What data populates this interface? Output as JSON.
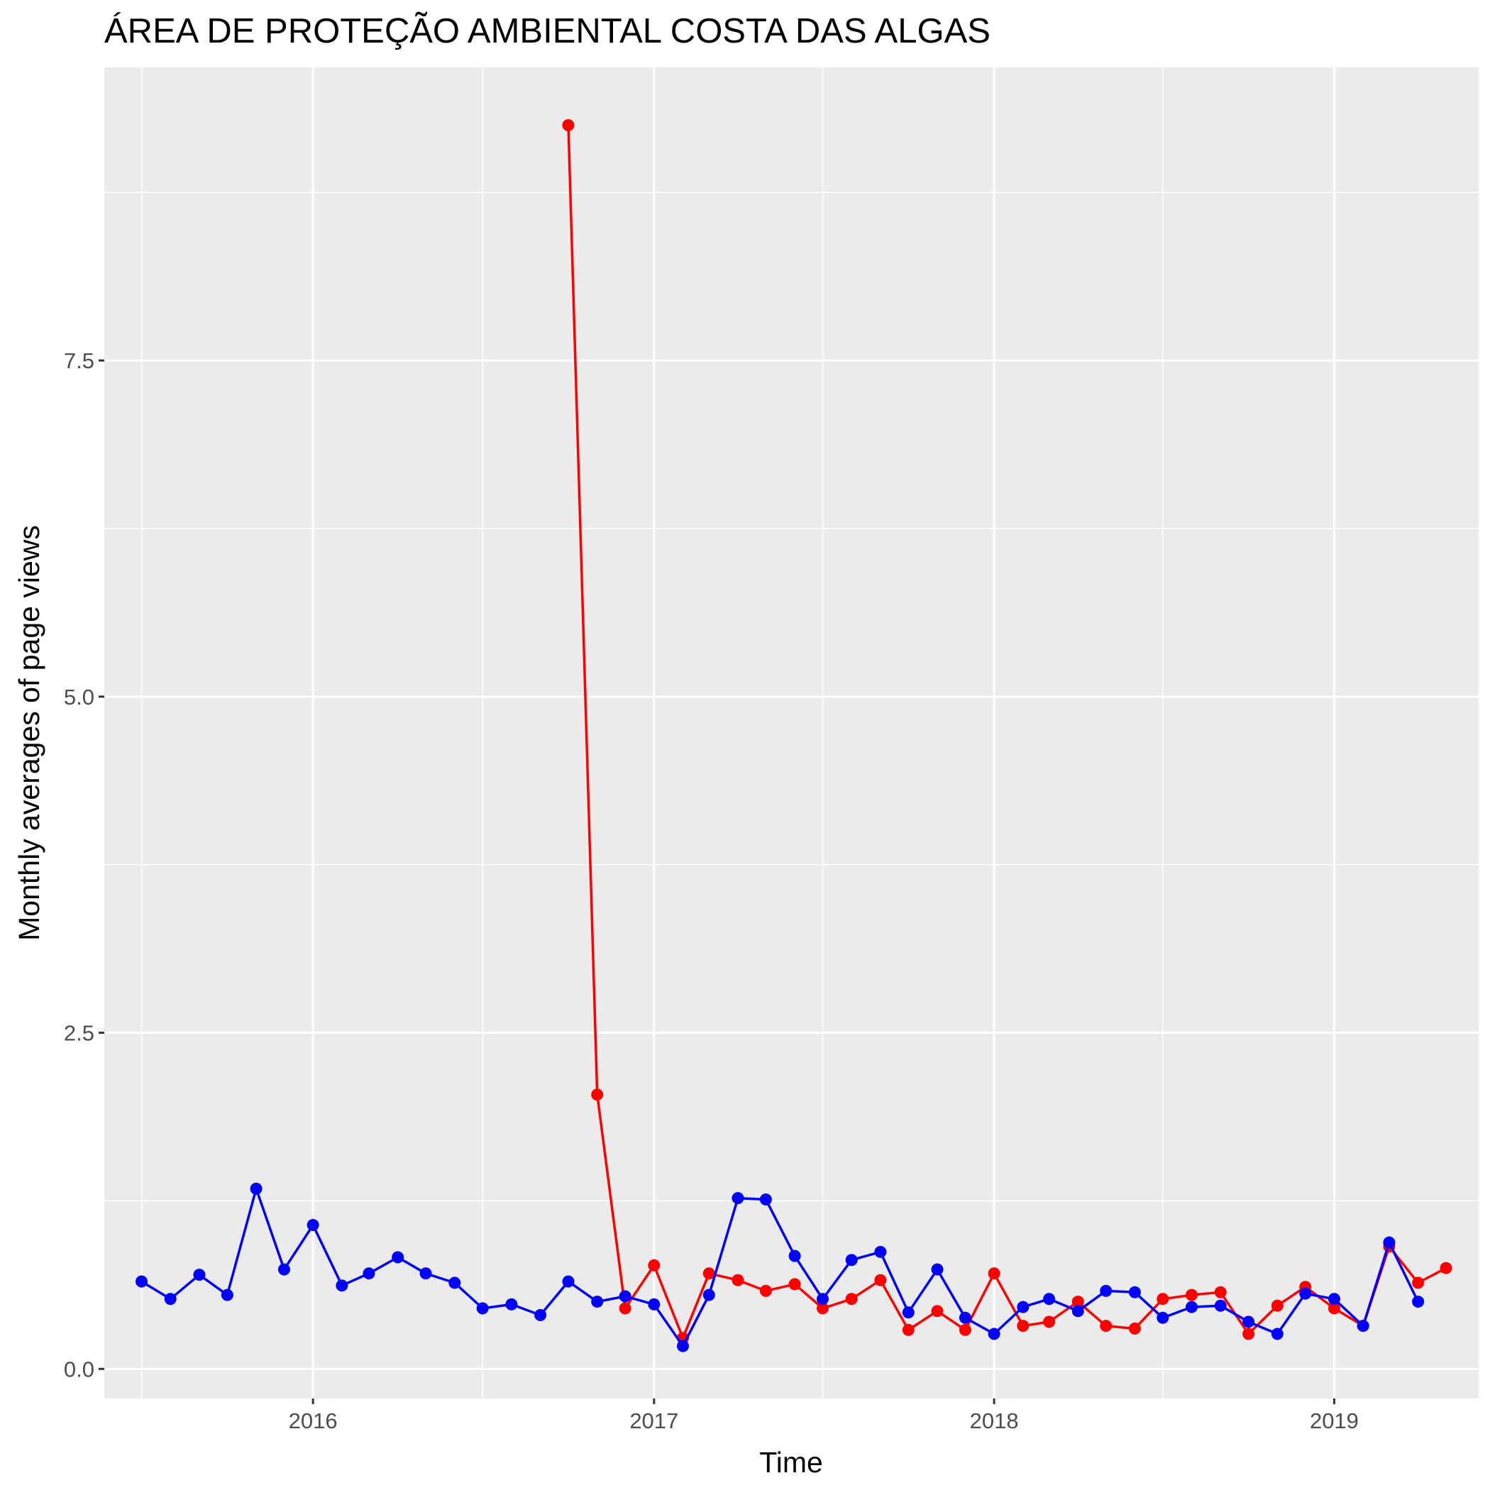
{
  "chart_data": {
    "type": "line",
    "title": "ÁREA DE PROTEÇÃO AMBIENTAL COSTA DAS ALGAS",
    "xlabel": "Time",
    "ylabel": "Monthly averages of page views",
    "x_axis_kind": "date",
    "x_ticks": [
      "2016-01-01",
      "2017-01-01",
      "2018-01-01",
      "2019-01-01"
    ],
    "x_tick_labels": [
      "2016",
      "2017",
      "2018",
      "2019"
    ],
    "xlim": [
      "2015-05-22",
      "2019-06-05"
    ],
    "y_ticks": [
      0,
      2.5,
      5,
      7.5
    ],
    "y_tick_labels": [
      "0.0",
      "2.5",
      "5.0",
      "7.5"
    ],
    "ylim": [
      -0.22,
      9.68
    ],
    "grid": true,
    "legend": "none",
    "series": [
      {
        "color": "#ff0000",
        "x": [
          "2016-10-01",
          "2016-11-01",
          "2016-12-01",
          "2017-01-01",
          "2017-02-01",
          "2017-03-01",
          "2017-04-01",
          "2017-05-01",
          "2017-06-01",
          "2017-07-01",
          "2017-08-01",
          "2017-09-01",
          "2017-10-01",
          "2017-11-01",
          "2017-12-01",
          "2018-01-01",
          "2018-02-01",
          "2018-03-01",
          "2018-04-01",
          "2018-05-01",
          "2018-06-01",
          "2018-07-01",
          "2018-08-01",
          "2018-09-01",
          "2018-10-01",
          "2018-11-01",
          "2018-12-01",
          "2019-01-01",
          "2019-02-01",
          "2019-03-01",
          "2019-04-01",
          "2019-05-01"
        ],
        "y": [
          9.25,
          2.04,
          0.45,
          0.77,
          0.23,
          0.71,
          0.66,
          0.58,
          0.63,
          0.45,
          0.52,
          0.66,
          0.29,
          0.43,
          0.29,
          0.71,
          0.32,
          0.35,
          0.5,
          0.32,
          0.3,
          0.52,
          0.55,
          0.57,
          0.26,
          0.47,
          0.61,
          0.45,
          0.32,
          0.91,
          0.64,
          0.75
        ]
      },
      {
        "color": "#0000ff",
        "x": [
          "2015-07-01",
          "2015-08-01",
          "2015-09-01",
          "2015-10-01",
          "2015-11-01",
          "2015-12-01",
          "2016-01-01",
          "2016-02-01",
          "2016-03-01",
          "2016-04-01",
          "2016-05-01",
          "2016-06-01",
          "2016-07-01",
          "2016-08-01",
          "2016-09-01",
          "2016-10-01",
          "2016-11-01",
          "2016-12-01",
          "2017-01-01",
          "2017-02-01",
          "2017-03-01",
          "2017-04-01",
          "2017-05-01",
          "2017-06-01",
          "2017-07-01",
          "2017-08-01",
          "2017-09-01",
          "2017-10-01",
          "2017-11-01",
          "2017-12-01",
          "2018-01-01",
          "2018-02-01",
          "2018-03-01",
          "2018-04-01",
          "2018-05-01",
          "2018-06-01",
          "2018-07-01",
          "2018-08-01",
          "2018-09-01",
          "2018-10-01",
          "2018-11-01",
          "2018-12-01",
          "2019-01-01",
          "2019-02-01",
          "2019-03-01",
          "2019-04-01"
        ],
        "y": [
          0.65,
          0.52,
          0.7,
          0.55,
          1.34,
          0.74,
          1.07,
          0.62,
          0.71,
          0.83,
          0.71,
          0.64,
          0.45,
          0.48,
          0.4,
          0.65,
          0.5,
          0.54,
          0.48,
          0.17,
          0.55,
          1.27,
          1.26,
          0.84,
          0.52,
          0.81,
          0.87,
          0.42,
          0.74,
          0.38,
          0.26,
          0.46,
          0.52,
          0.43,
          0.58,
          0.57,
          0.38,
          0.46,
          0.47,
          0.35,
          0.26,
          0.56,
          0.52,
          0.32,
          0.94,
          0.5
        ]
      }
    ]
  }
}
